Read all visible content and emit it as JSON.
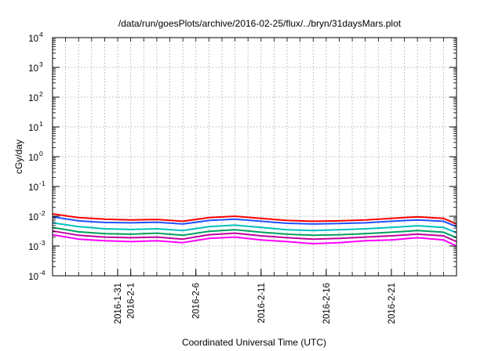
{
  "chart_data": {
    "type": "line",
    "title": "/data/run/goesPlots/archive/2016-02-25/flux/../bryn/31daysMars.plot",
    "xlabel": "Coordinated Universal Time (UTC)",
    "ylabel": "cGy/day",
    "y_scale": "log",
    "ylim": [
      0.0001,
      10000
    ],
    "y_ticks": [
      {
        "base": "10",
        "exp": "-4",
        "value": 0.0001
      },
      {
        "base": "10",
        "exp": "-3",
        "value": 0.001
      },
      {
        "base": "10",
        "exp": "-2",
        "value": 0.01
      },
      {
        "base": "10",
        "exp": "-1",
        "value": 0.1
      },
      {
        "base": "10",
        "exp": "0",
        "value": 1
      },
      {
        "base": "10",
        "exp": "1",
        "value": 10
      },
      {
        "base": "10",
        "exp": "2",
        "value": 100
      },
      {
        "base": "10",
        "exp": "3",
        "value": 1000
      },
      {
        "base": "10",
        "exp": "4",
        "value": 10000
      }
    ],
    "xlim": [
      "2016-01-26",
      "2016-02-26"
    ],
    "x_ticks": [
      "2016-1-31",
      "2016-2-1",
      "2016-2-6",
      "2016-2-11",
      "2016-2-16",
      "2016-2-21"
    ],
    "grid": true,
    "x": [
      "2016-01-26",
      "2016-01-28",
      "2016-01-30",
      "2016-02-01",
      "2016-02-03",
      "2016-02-05",
      "2016-02-07",
      "2016-02-09",
      "2016-02-11",
      "2016-02-13",
      "2016-02-15",
      "2016-02-17",
      "2016-02-19",
      "2016-02-21",
      "2016-02-23",
      "2016-02-25",
      "2016-02-26"
    ],
    "series": [
      {
        "color": "#ff0000",
        "values": [
          0.012,
          0.009,
          0.008,
          0.0075,
          0.0078,
          0.0068,
          0.009,
          0.01,
          0.0085,
          0.0072,
          0.0068,
          0.007,
          0.0075,
          0.0085,
          0.0095,
          0.0085,
          0.0055
        ]
      },
      {
        "color": "#2050ff",
        "values": [
          0.0095,
          0.007,
          0.0062,
          0.006,
          0.0063,
          0.0055,
          0.0072,
          0.008,
          0.0068,
          0.0058,
          0.0055,
          0.0057,
          0.006,
          0.0068,
          0.0075,
          0.0068,
          0.0045
        ]
      },
      {
        "color": "#00c0c0",
        "values": [
          0.006,
          0.0045,
          0.0038,
          0.0036,
          0.0038,
          0.0033,
          0.0045,
          0.005,
          0.0042,
          0.0035,
          0.0033,
          0.0035,
          0.0038,
          0.0042,
          0.0048,
          0.0042,
          0.0028
        ]
      },
      {
        "color": "#00a060",
        "values": [
          0.0042,
          0.003,
          0.0026,
          0.0025,
          0.0027,
          0.0023,
          0.0031,
          0.0035,
          0.0029,
          0.0025,
          0.0023,
          0.0024,
          0.0026,
          0.0029,
          0.0033,
          0.0029,
          0.0019
        ]
      },
      {
        "color": "#c000a0",
        "values": [
          0.0032,
          0.0023,
          0.002,
          0.0019,
          0.002,
          0.0017,
          0.0024,
          0.0027,
          0.0022,
          0.0019,
          0.0017,
          0.0018,
          0.002,
          0.0022,
          0.0025,
          0.0022,
          0.0014
        ]
      },
      {
        "color": "#ff00ff",
        "values": [
          0.0024,
          0.0017,
          0.0015,
          0.0014,
          0.0015,
          0.0013,
          0.0018,
          0.002,
          0.0016,
          0.0014,
          0.0012,
          0.0013,
          0.0015,
          0.0016,
          0.0019,
          0.0016,
          0.001
        ]
      }
    ]
  }
}
